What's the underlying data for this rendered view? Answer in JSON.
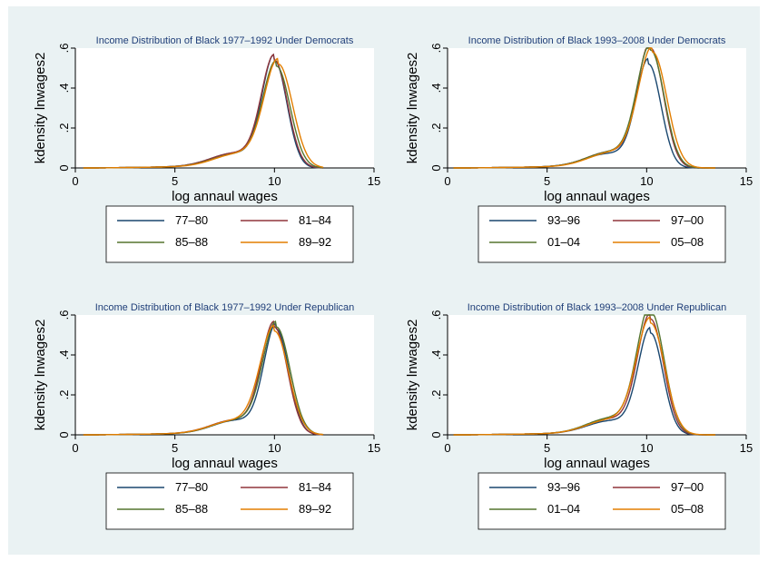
{
  "chart_data": [
    {
      "type": "line",
      "title": "Income Distribution of Black 1977–1992 Under Democrats",
      "xlabel": "log annaul wages",
      "ylabel": "kdensity lnwages2",
      "xlim": [
        0,
        15
      ],
      "ylim": [
        0,
        0.6
      ],
      "xticks": [
        "0",
        "5",
        "10",
        "15"
      ],
      "yticks": [
        "0",
        ".2",
        ".4",
        ".6"
      ],
      "grid": false,
      "legend": "bottom",
      "series": [
        {
          "name": "77–80",
          "color": "#1a476f",
          "peak_x": 10.0,
          "peak_y": 0.54
        },
        {
          "name": "81–84",
          "color": "#90353b",
          "peak_x": 10.0,
          "peak_y": 0.54
        },
        {
          "name": "85–88",
          "color": "#55752f",
          "peak_x": 10.1,
          "peak_y": 0.51
        },
        {
          "name": "89–92",
          "color": "#e37e00",
          "peak_x": 10.2,
          "peak_y": 0.52
        }
      ]
    },
    {
      "type": "line",
      "title": "Income Distribution of Black 1993–2008 Under Democrats",
      "xlabel": "log annaul wages",
      "ylabel": "kdensity lnwages2",
      "xlim": [
        0,
        15
      ],
      "ylim": [
        0,
        0.6
      ],
      "xticks": [
        "0",
        "5",
        "10",
        "15"
      ],
      "yticks": [
        "0",
        ".2",
        ".4",
        ".6"
      ],
      "grid": false,
      "legend": "bottom",
      "series": [
        {
          "name": "93–96",
          "color": "#1a476f",
          "peak_x": 10.1,
          "peak_y": 0.52
        },
        {
          "name": "97–00",
          "color": "#90353b",
          "peak_x": 10.2,
          "peak_y": 0.6
        },
        {
          "name": "01–04",
          "color": "#55752f",
          "peak_x": 10.2,
          "peak_y": 0.59
        },
        {
          "name": "05–08",
          "color": "#e37e00",
          "peak_x": 10.3,
          "peak_y": 0.58
        }
      ]
    },
    {
      "type": "line",
      "title": "Income Distribution of Black 1977–1992 Under Republican",
      "xlabel": "log annaul wages",
      "ylabel": "kdensity lnwages2",
      "xlim": [
        0,
        15
      ],
      "ylim": [
        0,
        0.6
      ],
      "xticks": [
        "0",
        "5",
        "10",
        "15"
      ],
      "yticks": [
        "0",
        ".2",
        ".4",
        ".6"
      ],
      "grid": false,
      "legend": "bottom",
      "series": [
        {
          "name": "77–80",
          "color": "#1a476f",
          "peak_x": 10.1,
          "peak_y": 0.53
        },
        {
          "name": "81–84",
          "color": "#90353b",
          "peak_x": 10.0,
          "peak_y": 0.54
        },
        {
          "name": "85–88",
          "color": "#55752f",
          "peak_x": 10.1,
          "peak_y": 0.54
        },
        {
          "name": "89–92",
          "color": "#e37e00",
          "peak_x": 10.0,
          "peak_y": 0.52
        }
      ]
    },
    {
      "type": "line",
      "title": "Income Distribution of Black 1993–2008 Under Republican",
      "xlabel": "log annaul wages",
      "ylabel": "kdensity lnwages2",
      "xlim": [
        0,
        15
      ],
      "ylim": [
        0,
        0.6
      ],
      "xticks": [
        "0",
        "5",
        "10",
        "15"
      ],
      "yticks": [
        "0",
        ".2",
        ".4",
        ".6"
      ],
      "grid": false,
      "legend": "bottom",
      "series": [
        {
          "name": "93–96",
          "color": "#1a476f",
          "peak_x": 10.2,
          "peak_y": 0.51
        },
        {
          "name": "97–00",
          "color": "#90353b",
          "peak_x": 10.2,
          "peak_y": 0.58
        },
        {
          "name": "01–04",
          "color": "#55752f",
          "peak_x": 10.2,
          "peak_y": 0.62
        },
        {
          "name": "05–08",
          "color": "#e37e00",
          "peak_x": 10.2,
          "peak_y": 0.56
        }
      ]
    }
  ]
}
